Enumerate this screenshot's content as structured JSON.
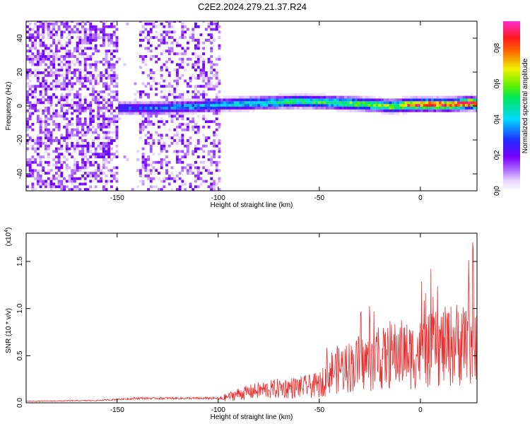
{
  "title": "C2E2.2024.279.21.37.R24",
  "chart_data": [
    {
      "type": "heatmap",
      "xlabel": "Height of straight line (km)",
      "ylabel": "Frequency (Hz)",
      "xlim": [
        -195,
        28
      ],
      "ylim": [
        -50,
        50
      ],
      "xticks": [
        -150,
        -100,
        -50,
        0
      ],
      "xtick_labels": [
        "-150",
        "-100",
        "-50",
        "0"
      ],
      "yticks": [
        -40,
        -20,
        0,
        20,
        40
      ],
      "ytick_labels": [
        "-40",
        "-20",
        "0",
        "20",
        "40"
      ],
      "colorbar": {
        "label": "Normalized spectral amplitude",
        "range": [
          0,
          0.95
        ],
        "ticks": [
          0.0,
          0.2,
          0.4,
          0.6,
          0.8
        ],
        "tick_labels": [
          "0.0",
          "0.2",
          "0.4",
          "0.6",
          "0.8"
        ],
        "colormap": "rainbow (white-violet-blue-cyan-green-yellow-red-magenta)"
      },
      "ridge": {
        "x": [
          -148,
          -130,
          -110,
          -100,
          -80,
          -60,
          -40,
          -25,
          -15,
          -5,
          5,
          15,
          25,
          28
        ],
        "y": [
          -2,
          -2,
          -1,
          0,
          1,
          2,
          1,
          0,
          -1,
          0,
          0,
          0,
          1,
          0
        ]
      }
    },
    {
      "type": "line",
      "xlabel": "Height of straight line (km)",
      "ylabel": "SNR (10 * v/v)",
      "yscale_label": "(x10",
      "yscale_exp": "4",
      "yscale_close": ")",
      "xlim": [
        -195,
        28
      ],
      "ylim": [
        0,
        1.8
      ],
      "xticks": [
        -150,
        -100,
        -50,
        0
      ],
      "xtick_labels": [
        "-150",
        "-100",
        "-50",
        "0"
      ],
      "yticks": [
        0,
        0.5,
        1.0,
        1.5
      ],
      "ytick_labels": [
        "0.0",
        "0.5",
        "1.0",
        "1.5"
      ],
      "color": "#e83030",
      "envelope": {
        "x": [
          -195,
          -160,
          -140,
          -120,
          -100,
          -90,
          -80,
          -70,
          -60,
          -50,
          -45,
          -40,
          -30,
          -20,
          -10,
          -5,
          0,
          10,
          20,
          25,
          28
        ],
        "y": [
          0.02,
          0.03,
          0.06,
          0.06,
          0.06,
          0.16,
          0.22,
          0.26,
          0.28,
          0.32,
          0.55,
          0.62,
          0.7,
          0.78,
          0.9,
          0.85,
          0.9,
          1.0,
          1.1,
          1.2,
          1.25
        ]
      }
    }
  ]
}
